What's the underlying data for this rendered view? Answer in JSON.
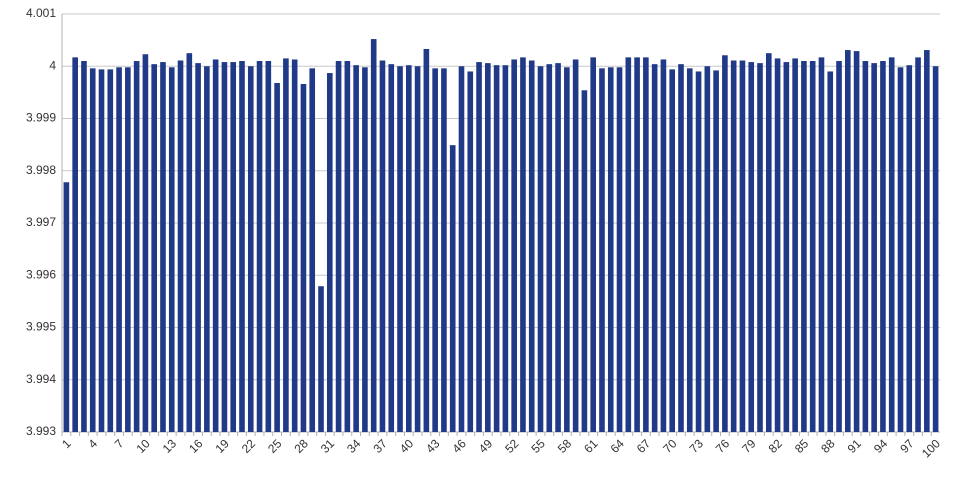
{
  "chart_data": {
    "type": "bar",
    "categories": [
      "1",
      null,
      null,
      "4",
      null,
      null,
      "7",
      null,
      null,
      "10",
      null,
      null,
      "13",
      null,
      null,
      "16",
      null,
      null,
      "19",
      null,
      null,
      "22",
      null,
      null,
      "25",
      null,
      null,
      "28",
      null,
      null,
      "31",
      null,
      null,
      "34",
      null,
      null,
      "37",
      null,
      null,
      "40",
      null,
      null,
      "43",
      null,
      null,
      "46",
      null,
      null,
      "49",
      null,
      null,
      "52",
      null,
      null,
      "55",
      null,
      null,
      "58",
      null,
      null,
      "61",
      null,
      null,
      "64",
      null,
      null,
      "67",
      null,
      null,
      "70",
      null,
      null,
      "73",
      null,
      null,
      "76",
      null,
      null,
      "79",
      null,
      null,
      "82",
      null,
      null,
      "85",
      null,
      null,
      "88",
      null,
      null,
      "91",
      null,
      null,
      "94",
      null,
      null,
      "97",
      null,
      null,
      "100"
    ],
    "values": [
      3.99778,
      4.00017,
      4.0001,
      3.99996,
      3.99994,
      3.99994,
      3.99998,
      3.99998,
      4.0001,
      4.00023,
      4.00004,
      4.00008,
      3.99998,
      4.00011,
      4.00025,
      4.00006,
      4.0,
      4.00013,
      4.00008,
      4.00008,
      4.0001,
      4.0,
      4.0001,
      4.0001,
      3.99968,
      4.00015,
      4.00013,
      3.99966,
      3.99996,
      3.99579,
      3.99987,
      4.0001,
      4.0001,
      4.00002,
      3.99998,
      4.00052,
      4.00011,
      4.00004,
      4.0,
      4.00002,
      4.0,
      4.00033,
      3.99996,
      3.99996,
      3.99849,
      4.0,
      3.9999,
      4.00008,
      4.00006,
      4.00002,
      4.00002,
      4.00013,
      4.00017,
      4.00011,
      4.0,
      4.00004,
      4.00006,
      3.99998,
      4.00013,
      3.99954,
      4.00017,
      3.99996,
      3.99998,
      3.99998,
      4.00017,
      4.00017,
      4.00017,
      4.00004,
      4.00013,
      3.99994,
      4.00004,
      3.99996,
      3.9999,
      4.0,
      3.99992,
      4.00021,
      4.00011,
      4.00011,
      4.00008,
      4.00006,
      4.00025,
      4.00015,
      4.00008,
      4.00015,
      4.0001,
      4.0001,
      4.00017,
      3.9999,
      4.0001,
      4.00031,
      4.00029,
      4.0001,
      4.00006,
      4.0001,
      4.00017,
      3.99998,
      4.00002,
      4.00017,
      4.00031,
      4.0
    ],
    "color": "#203a87",
    "ylim": [
      3.993,
      4.001
    ],
    "yticks": [
      3.993,
      3.994,
      3.995,
      3.996,
      3.997,
      3.998,
      3.999,
      4,
      4.001
    ],
    "grid": true
  }
}
